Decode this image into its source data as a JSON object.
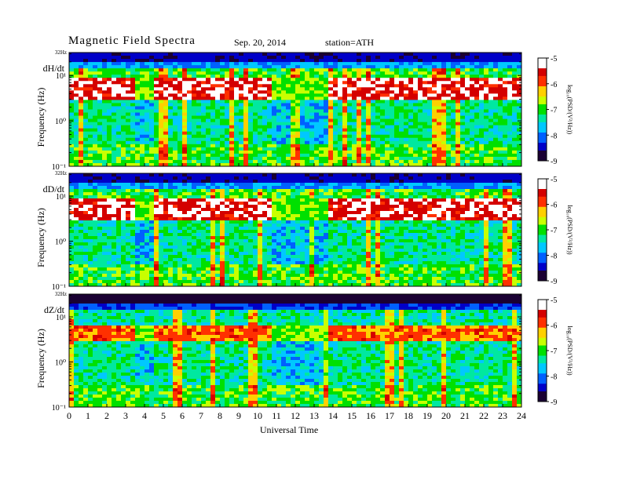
{
  "header": {
    "title": "Magnetic Field Spectra",
    "date": "Sep. 20, 2014",
    "station": "station=ATH"
  },
  "colors": {
    "scale": [
      "#1a0033",
      "#0000c8",
      "#0060ff",
      "#00c8ff",
      "#00e8a0",
      "#00e000",
      "#c8ff00",
      "#ffd000",
      "#ff3000",
      "#d40000",
      "#ffffff"
    ]
  },
  "chart_data": [
    {
      "type": "heatmap",
      "panel_label": "dH/dt",
      "ylabel": "Frequency (Hz)",
      "top_label": "32Hz",
      "yscale": "log",
      "ylim": [
        0.1,
        32
      ],
      "yticks": [
        "10¹",
        "10⁰",
        "10⁻¹"
      ],
      "xlim": [
        0,
        24
      ],
      "colorbar": {
        "label": "log₁₀(PSD/(V²/Hz))",
        "range": [
          -9,
          -5
        ],
        "ticks": [
          "-5",
          "-6",
          "-7",
          "-8",
          "-9"
        ]
      },
      "gap_hours": [
        [
          3.6,
          4.6
        ],
        [
          10.8,
          13.7
        ]
      ],
      "band_hz": [
        3,
        8
      ]
    },
    {
      "type": "heatmap",
      "panel_label": "dD/dt",
      "ylabel": "Frequency (Hz)",
      "top_label": "32Hz",
      "yscale": "log",
      "ylim": [
        0.1,
        32
      ],
      "yticks": [
        "10¹",
        "10⁰",
        "10⁻¹"
      ],
      "xlim": [
        0,
        24
      ],
      "colorbar": {
        "label": "log₁₀(PSD/(V²/Hz))",
        "range": [
          -9,
          -5
        ],
        "ticks": [
          "-5",
          "-6",
          "-7",
          "-8",
          "-9"
        ]
      },
      "gap_hours": [
        [
          3.6,
          4.6
        ],
        [
          10.8,
          13.7
        ]
      ],
      "band_hz": [
        3,
        8
      ]
    },
    {
      "type": "heatmap",
      "panel_label": "dZ/dt",
      "ylabel": "Frequency (Hz)",
      "top_label": "32Hz",
      "yscale": "log",
      "ylim": [
        0.1,
        32
      ],
      "yticks": [
        "10¹",
        "10⁰",
        "10⁻¹"
      ],
      "xlim": [
        0,
        24
      ],
      "colorbar": {
        "label": "log₁₀(PSD/(V²/Hz))",
        "range": [
          -9,
          -5
        ],
        "ticks": [
          "-5",
          "-6",
          "-7",
          "-8",
          "-9"
        ]
      },
      "gap_hours": [
        [
          3.6,
          4.6
        ],
        [
          10.8,
          13.7
        ]
      ],
      "band_hz": [
        3,
        6
      ]
    }
  ],
  "xaxis": {
    "label": "Universal Time",
    "ticks": [
      "0",
      "1",
      "2",
      "3",
      "4",
      "5",
      "6",
      "7",
      "8",
      "9",
      "10",
      "11",
      "12",
      "13",
      "14",
      "15",
      "16",
      "17",
      "18",
      "19",
      "20",
      "21",
      "22",
      "23",
      "24"
    ]
  }
}
